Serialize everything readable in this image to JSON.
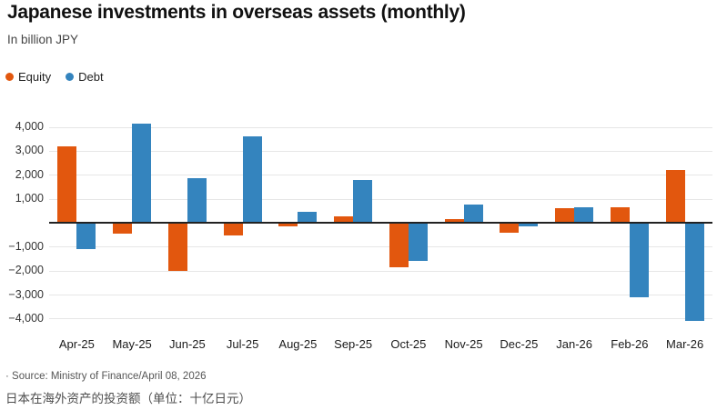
{
  "header": {
    "title": "Japanese investments in overseas assets (monthly)",
    "subtitle": "In billion JPY"
  },
  "chart_data": {
    "type": "bar",
    "title": "Japanese investments in overseas assets (monthly)",
    "unit_label": "In billion JPY",
    "categories": [
      "Apr-25",
      "May-25",
      "Jun-25",
      "Jul-25",
      "Aug-25",
      "Sep-25",
      "Oct-25",
      "Nov-25",
      "Dec-25",
      "Jan-26",
      "Feb-26",
      "Mar-26"
    ],
    "series": [
      {
        "name": "Equity",
        "color": "#e2570e",
        "values": [
          3200,
          -450,
          -2000,
          -550,
          -150,
          250,
          -1850,
          150,
          -400,
          600,
          650,
          2200
        ]
      },
      {
        "name": "Debt",
        "color": "#3484be",
        "values": [
          -1100,
          4150,
          1850,
          3600,
          450,
          1800,
          -1600,
          750,
          -150,
          650,
          -3100,
          -4100
        ]
      }
    ],
    "ylim": [
      -4000,
      4000
    ],
    "yticks": [
      {
        "value": 4000,
        "label": "4,000"
      },
      {
        "value": 3000,
        "label": "3,000"
      },
      {
        "value": 2000,
        "label": "2,000"
      },
      {
        "value": 1000,
        "label": "1,000"
      },
      {
        "value": -1000,
        "label": "−1,000"
      },
      {
        "value": -2000,
        "label": "−2,000"
      },
      {
        "value": -3000,
        "label": "−3,000"
      },
      {
        "value": -4000,
        "label": "−4,000"
      }
    ],
    "grid": true,
    "legend_position": "top-left",
    "zero_baseline": true
  },
  "footer": {
    "source": "· Source: Ministry of Finance/April 08, 2026",
    "note_cn": "日本在海外资产的投资额（单位：十亿日元）"
  }
}
